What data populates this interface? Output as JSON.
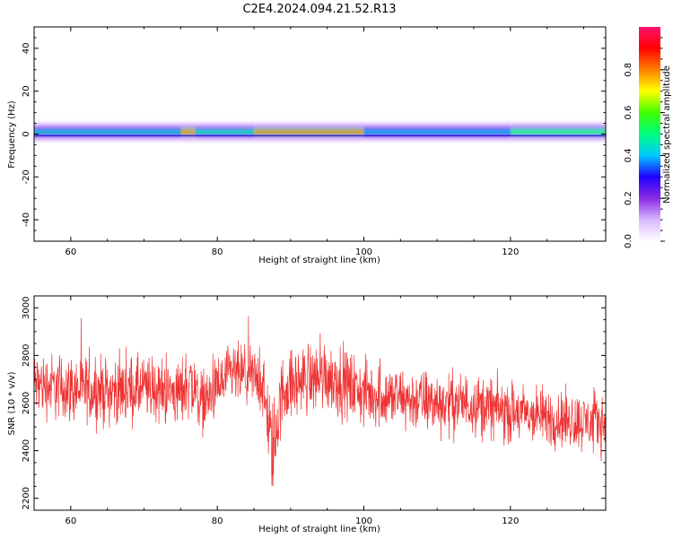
{
  "chart_data": [
    {
      "type": "heatmap",
      "title": "C2E4.2024.094.21.52.R13",
      "xlabel": "Height of straight line (km)",
      "ylabel": "Frequency (Hz)",
      "xlim": [
        55,
        133
      ],
      "ylim": [
        -50,
        50
      ],
      "xticks": [
        60,
        80,
        100,
        120
      ],
      "yticks": [
        40,
        20,
        0,
        -20,
        -40
      ],
      "band": {
        "center_hz": 1,
        "core_halfwidth_hz": 2,
        "halo_halfwidth_hz": 4,
        "segments": [
          {
            "x": [
              55,
              75
            ],
            "amplitude": 0.45
          },
          {
            "x": [
              75,
              77
            ],
            "amplitude": 0.9
          },
          {
            "x": [
              77,
              85
            ],
            "amplitude": 0.5
          },
          {
            "x": [
              85,
              100
            ],
            "amplitude": 0.88
          },
          {
            "x": [
              100,
              120
            ],
            "amplitude": 0.42
          },
          {
            "x": [
              120,
              133
            ],
            "amplitude": 0.6
          }
        ]
      },
      "colorbar": {
        "label": "Normalized spectral amplitude",
        "ticks": [
          "0.0",
          "0.2",
          "0.4",
          "0.6",
          "0.8"
        ],
        "range": [
          0,
          1
        ],
        "colors": [
          "#ffffff",
          "#d9b8ff",
          "#8a2be2",
          "#2000ff",
          "#00c8ff",
          "#00ff80",
          "#40ff00",
          "#ffff00",
          "#ff8000",
          "#ff0000",
          "#ff1070"
        ]
      }
    },
    {
      "type": "line",
      "xlabel": "Height of straight line (km)",
      "ylabel": "SNR (10 * v/v)",
      "xlim": [
        55,
        133
      ],
      "ylim": [
        2150,
        3050
      ],
      "xticks": [
        60,
        80,
        100,
        120
      ],
      "yticks": [
        3000,
        2800,
        2600,
        2400,
        2200
      ],
      "color": "#ee3333",
      "series": [
        {
          "x": [
            55,
            60,
            65,
            70,
            75,
            76,
            78,
            82,
            86,
            87.5,
            89,
            92,
            95,
            100,
            105,
            110,
            115,
            120,
            125,
            130,
            133
          ],
          "center": [
            2680,
            2660,
            2650,
            2660,
            2640,
            2700,
            2600,
            2720,
            2700,
            2400,
            2660,
            2700,
            2720,
            2640,
            2620,
            2600,
            2600,
            2560,
            2540,
            2520,
            2520
          ],
          "spread": [
            170,
            170,
            170,
            165,
            165,
            200,
            150,
            160,
            160,
            250,
            180,
            180,
            190,
            170,
            160,
            160,
            155,
            155,
            150,
            150,
            150
          ]
        }
      ]
    }
  ]
}
